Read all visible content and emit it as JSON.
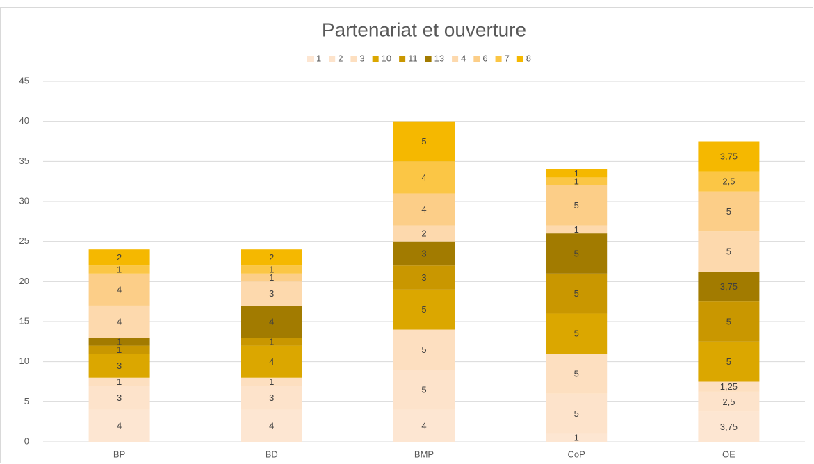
{
  "chart_data": {
    "type": "stacked_bar",
    "title": "Partenariat et ouverture",
    "categories": [
      "BP",
      "BD",
      "BMP",
      "CoP",
      "OE"
    ],
    "series": [
      {
        "name": "1",
        "color": "#fde6d2",
        "values": [
          4,
          4,
          4,
          1,
          3.75
        ],
        "value_labels": [
          "4",
          "4",
          "4",
          "1",
          "3,75"
        ]
      },
      {
        "name": "2",
        "color": "#fde3cb",
        "values": [
          3,
          3,
          5,
          5,
          2.5
        ],
        "value_labels": [
          "3",
          "3",
          "5",
          "5",
          "2,5"
        ]
      },
      {
        "name": "3",
        "color": "#fddfc0",
        "values": [
          1,
          1,
          5,
          5,
          1.25
        ],
        "value_labels": [
          "1",
          "1",
          "5",
          "5",
          "1,25"
        ]
      },
      {
        "name": "10",
        "color": "#dba700",
        "values": [
          3,
          4,
          5,
          5,
          5
        ]
      },
      {
        "name": "11",
        "color": "#c99700",
        "values": [
          1,
          1,
          3,
          5,
          5
        ]
      },
      {
        "name": "13",
        "color": "#a27b00",
        "values": [
          1,
          4,
          3,
          5,
          3.75
        ],
        "value_labels": [
          "1",
          "4",
          "3",
          "5",
          "3,75"
        ]
      },
      {
        "name": "4",
        "color": "#fdd9ad",
        "values": [
          4,
          3,
          2,
          1,
          5
        ]
      },
      {
        "name": "6",
        "color": "#fcce88",
        "values": [
          4,
          1,
          4,
          5,
          5
        ]
      },
      {
        "name": "7",
        "color": "#fbc645",
        "values": [
          1,
          1,
          4,
          1,
          2.5
        ],
        "value_labels": [
          "1",
          "1",
          "4",
          "1",
          "2,5"
        ]
      },
      {
        "name": "8",
        "color": "#f5b800",
        "values": [
          2,
          2,
          5,
          1,
          3.75
        ],
        "value_labels": [
          "2",
          "2",
          "5",
          "1",
          "3,75"
        ]
      }
    ],
    "ylim": [
      0,
      45
    ],
    "yticks": [
      0,
      5,
      10,
      15,
      20,
      25,
      30,
      35,
      40,
      45
    ],
    "grid": true,
    "legend": "top"
  }
}
